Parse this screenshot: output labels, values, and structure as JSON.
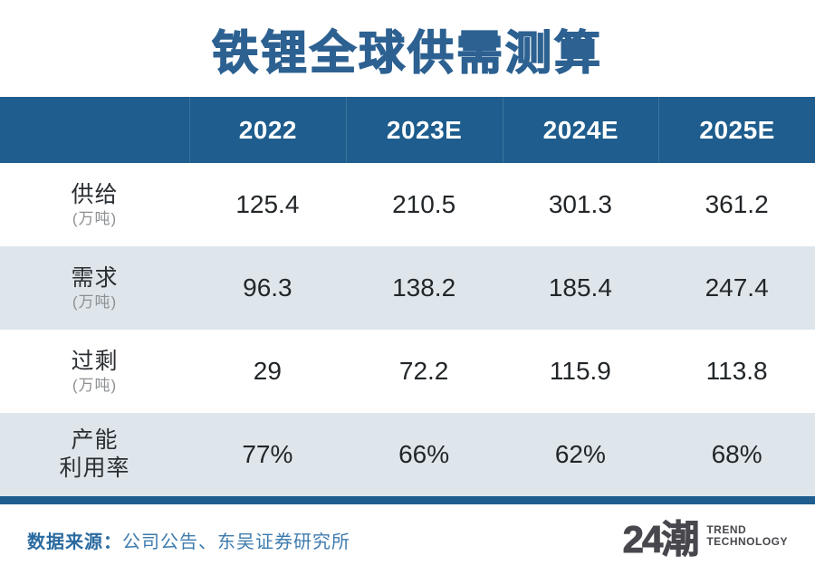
{
  "title": "铁锂全球供需测算",
  "table": {
    "columns": [
      "2022",
      "2023E",
      "2024E",
      "2025E"
    ],
    "rows": [
      {
        "label": "供给",
        "unit": "(万吨)",
        "values": [
          "125.4",
          "210.5",
          "301.3",
          "361.2"
        ]
      },
      {
        "label": "需求",
        "unit": "(万吨)",
        "values": [
          "96.3",
          "138.2",
          "185.4",
          "247.4"
        ]
      },
      {
        "label": "过剩",
        "unit": "(万吨)",
        "values": [
          "29",
          "72.2",
          "115.9",
          "113.8"
        ]
      },
      {
        "label": "产能",
        "label2": "利用率",
        "values": [
          "77%",
          "66%",
          "62%",
          "68%"
        ]
      }
    ]
  },
  "footer": {
    "source_label": "数据来源：",
    "source_text": "公司公告、东吴证券研究所",
    "logo_text": "24潮",
    "logo_line1": "TREND",
    "logo_line2": "TECHNOLOGY"
  },
  "colors": {
    "header_blue": "#1e5d8d",
    "title_blue": "#2c6191",
    "row_alt": "#dee6ec",
    "source_blue": "#2a6aa0",
    "logo_gray": "#47474d"
  },
  "chart_data": {
    "type": "table",
    "title": "铁锂全球供需测算",
    "categories": [
      "2022",
      "2023E",
      "2024E",
      "2025E"
    ],
    "series": [
      {
        "name": "供给(万吨)",
        "values": [
          125.4,
          210.5,
          301.3,
          361.2
        ]
      },
      {
        "name": "需求(万吨)",
        "values": [
          96.3,
          138.2,
          185.4,
          247.4
        ]
      },
      {
        "name": "过剩(万吨)",
        "values": [
          29,
          72.2,
          115.9,
          113.8
        ]
      },
      {
        "name": "产能利用率",
        "values": [
          "77%",
          "66%",
          "62%",
          "68%"
        ]
      }
    ],
    "source": "公司公告、东吴证券研究所",
    "legend_position": "none",
    "grid": false
  }
}
